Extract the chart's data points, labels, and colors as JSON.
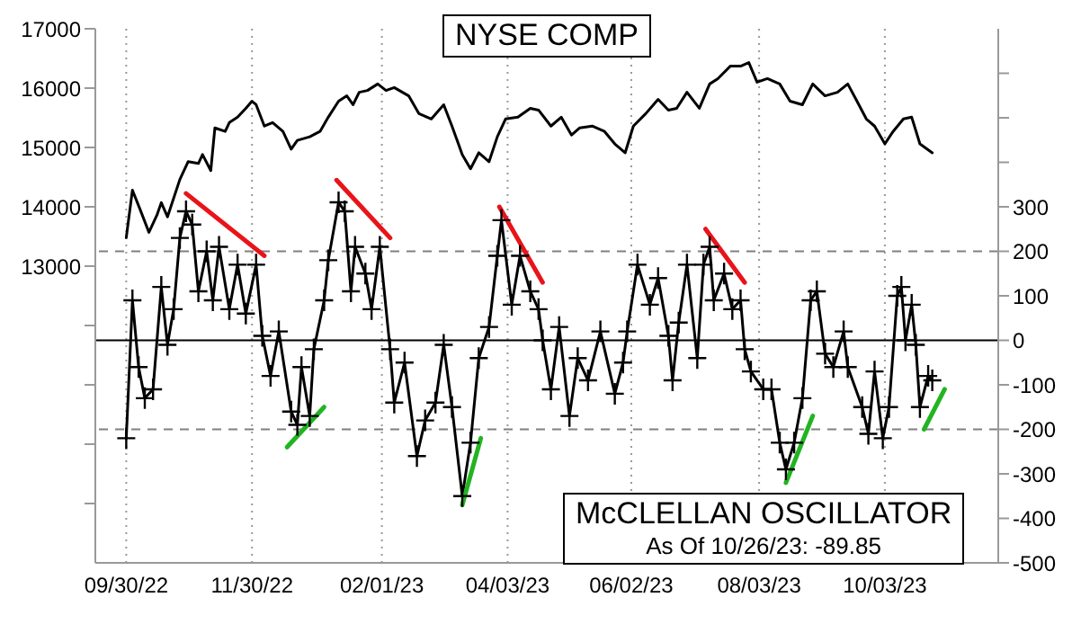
{
  "chart_data": {
    "type": "line",
    "xlim": [
      "2022-09-15",
      "2023-11-27"
    ],
    "xticks": [
      {
        "value": "2022-09-30",
        "label": "09/30/22"
      },
      {
        "value": "2022-11-30",
        "label": "11/30/22"
      },
      {
        "value": "2023-02-01",
        "label": "02/01/23"
      },
      {
        "value": "2023-04-03",
        "label": "04/03/23"
      },
      {
        "value": "2023-06-02",
        "label": "06/02/23"
      },
      {
        "value": "2023-08-03",
        "label": "08/03/23"
      },
      {
        "value": "2023-10-03",
        "label": "10/03/23"
      }
    ],
    "ylim": [
      8000,
      17000
    ],
    "yticks": [
      {
        "value": 9000,
        "label": null
      },
      {
        "value": 10000,
        "label": null
      },
      {
        "value": 11000,
        "label": null
      },
      {
        "value": 12000,
        "label": null
      },
      13000,
      14000,
      15000,
      16000,
      17000
    ],
    "y2lim": [
      -500,
      700
    ],
    "y2ticks": [
      -500,
      -400,
      -300,
      -200,
      -100,
      0,
      100,
      200,
      300,
      {
        "value": 400,
        "label": null
      },
      {
        "value": 500,
        "label": null
      },
      {
        "value": 600,
        "label": null
      }
    ],
    "grid": "x",
    "ref_lines": [
      {
        "axis": "y2",
        "value": 200,
        "color": "#808080",
        "line_style": "dashed"
      },
      {
        "axis": "y2",
        "value": -200,
        "color": "#808080",
        "line_style": "dashed"
      },
      {
        "axis": "y2",
        "value": 0,
        "color": "#000000",
        "line_style": "solid"
      }
    ],
    "annotations": [
      "As Of 10/26/23: -89.85"
    ],
    "series": [
      {
        "name": "NYSE COMP",
        "color": "#000000",
        "marker": "none",
        "x": [
          "2022-09-30",
          "2022-10-03",
          "2022-10-07",
          "2022-10-11",
          "2022-10-15",
          "2022-10-17",
          "2022-10-20",
          "2022-10-26",
          "2022-10-30",
          "2022-11-04",
          "2022-11-06",
          "2022-11-10",
          "2022-11-12",
          "2022-11-17",
          "2022-11-19",
          "2022-11-23",
          "2022-11-27",
          "2022-11-30",
          "2022-12-02",
          "2022-12-06",
          "2022-12-10",
          "2022-12-15",
          "2022-12-19",
          "2022-12-22",
          "2022-12-28",
          "2023-01-02",
          "2023-01-06",
          "2023-01-11",
          "2023-01-15",
          "2023-01-18",
          "2023-01-21",
          "2023-01-25",
          "2023-01-30",
          "2023-02-03",
          "2023-02-07",
          "2023-02-14",
          "2023-02-19",
          "2023-02-25",
          "2023-03-03",
          "2023-03-07",
          "2023-03-12",
          "2023-03-16",
          "2023-03-20",
          "2023-03-25",
          "2023-03-29",
          "2023-04-02",
          "2023-04-08",
          "2023-04-14",
          "2023-04-18",
          "2023-04-24",
          "2023-04-29",
          "2023-05-04",
          "2023-05-08",
          "2023-05-14",
          "2023-05-20",
          "2023-05-25",
          "2023-05-30",
          "2023-06-03",
          "2023-06-09",
          "2023-06-15",
          "2023-06-20",
          "2023-06-24",
          "2023-06-29",
          "2023-07-05",
          "2023-07-10",
          "2023-07-14",
          "2023-07-20",
          "2023-07-25",
          "2023-07-29",
          "2023-08-02",
          "2023-08-07",
          "2023-08-13",
          "2023-08-18",
          "2023-08-24",
          "2023-08-29",
          "2023-09-04",
          "2023-09-10",
          "2023-09-15",
          "2023-09-19",
          "2023-09-24",
          "2023-09-28",
          "2023-10-03",
          "2023-10-07",
          "2023-10-12",
          "2023-10-16",
          "2023-10-20",
          "2023-10-26"
        ],
        "values": [
          13480,
          14280,
          13930,
          13570,
          13870,
          14070,
          13830,
          14460,
          14760,
          14730,
          14880,
          14610,
          15330,
          15270,
          15420,
          15510,
          15660,
          15780,
          15720,
          15360,
          15420,
          15270,
          14970,
          15120,
          15180,
          15270,
          15510,
          15780,
          15870,
          15720,
          15930,
          15960,
          16070,
          15960,
          16010,
          15870,
          15570,
          15480,
          15720,
          15360,
          14880,
          14640,
          14910,
          14760,
          15180,
          15480,
          15510,
          15660,
          15630,
          15360,
          15510,
          15210,
          15330,
          15360,
          15270,
          15060,
          14910,
          15360,
          15570,
          15810,
          15630,
          15660,
          15930,
          15660,
          16070,
          16160,
          16370,
          16370,
          16430,
          16100,
          16160,
          16070,
          15780,
          15720,
          16070,
          15870,
          15930,
          16070,
          15810,
          15480,
          15360,
          15060,
          15270,
          15480,
          15510,
          15060,
          14910
        ]
      },
      {
        "name": "McCLELLAN OSCILLATOR",
        "color": "#000000",
        "axis": "y2",
        "marker": "cross",
        "x": [
          "2022-09-30",
          "2022-10-03",
          "2022-10-06",
          "2022-10-09",
          "2022-10-13",
          "2022-10-17",
          "2022-10-20",
          "2022-10-23",
          "2022-10-26",
          "2022-10-29",
          "2022-11-01",
          "2022-11-04",
          "2022-11-08",
          "2022-11-11",
          "2022-11-14",
          "2022-11-19",
          "2022-11-23",
          "2022-11-27",
          "2022-12-02",
          "2022-12-05",
          "2022-12-09",
          "2022-12-13",
          "2022-12-19",
          "2022-12-22",
          "2022-12-24",
          "2022-12-28",
          "2022-12-30",
          "2023-01-04",
          "2023-01-06",
          "2023-01-11",
          "2023-01-14",
          "2023-01-17",
          "2023-01-19",
          "2023-01-24",
          "2023-01-27",
          "2023-01-31",
          "2023-02-05",
          "2023-02-07",
          "2023-02-12",
          "2023-02-18",
          "2023-02-22",
          "2023-02-27",
          "2023-03-03",
          "2023-03-07",
          "2023-03-12",
          "2023-03-16",
          "2023-03-20",
          "2023-03-25",
          "2023-03-29",
          "2023-03-31",
          "2023-04-05",
          "2023-04-09",
          "2023-04-14",
          "2023-04-18",
          "2023-04-20",
          "2023-04-24",
          "2023-04-28",
          "2023-05-03",
          "2023-05-07",
          "2023-05-12",
          "2023-05-18",
          "2023-05-25",
          "2023-05-29",
          "2023-05-31",
          "2023-06-05",
          "2023-06-11",
          "2023-06-15",
          "2023-06-20",
          "2023-06-22",
          "2023-06-25",
          "2023-06-29",
          "2023-07-04",
          "2023-07-07",
          "2023-07-10",
          "2023-07-12",
          "2023-07-17",
          "2023-07-21",
          "2023-07-25",
          "2023-07-27",
          "2023-07-30",
          "2023-08-05",
          "2023-08-09",
          "2023-08-13",
          "2023-08-16",
          "2023-08-20",
          "2023-08-24",
          "2023-08-28",
          "2023-08-31",
          "2023-09-04",
          "2023-09-08",
          "2023-09-13",
          "2023-09-15",
          "2023-09-22",
          "2023-09-25",
          "2023-09-28",
          "2023-10-02",
          "2023-10-05",
          "2023-10-09",
          "2023-10-11",
          "2023-10-13",
          "2023-10-16",
          "2023-10-18",
          "2023-10-20",
          "2023-10-24",
          "2023-10-26"
        ],
        "values": [
          -220,
          90,
          -60,
          -130,
          -110,
          120,
          -10,
          70,
          230,
          290,
          260,
          110,
          200,
          90,
          210,
          70,
          170,
          60,
          170,
          10,
          -80,
          20,
          -160,
          -190,
          -60,
          -170,
          -20,
          90,
          180,
          310,
          290,
          110,
          210,
          150,
          70,
          210,
          -20,
          -140,
          -50,
          -260,
          -180,
          -140,
          -10,
          -150,
          -350,
          -230,
          -40,
          30,
          190,
          270,
          80,
          190,
          110,
          70,
          0,
          -110,
          30,
          -170,
          -40,
          -90,
          20,
          -120,
          -50,
          20,
          170,
          80,
          140,
          10,
          -90,
          40,
          170,
          -40,
          170,
          210,
          90,
          150,
          70,
          90,
          -20,
          -70,
          -110,
          -110,
          -230,
          -290,
          -230,
          -130,
          90,
          110,
          -30,
          -60,
          20,
          -60,
          -150,
          -210,
          -70,
          -220,
          -150,
          100,
          120,
          0,
          80,
          -10,
          -150,
          -80,
          -90
        ]
      },
      {
        "color": "#e8141a",
        "axis": "y2",
        "marker": "none",
        "x": [
          "2022-10-29",
          "2022-12-06"
        ],
        "values": [
          330,
          190
        ]
      },
      {
        "color": "#e8141a",
        "axis": "y2",
        "marker": "none",
        "x": [
          "2023-01-10",
          "2023-02-05"
        ],
        "values": [
          360,
          230
        ]
      },
      {
        "color": "#e8141a",
        "axis": "y2",
        "marker": "none",
        "x": [
          "2023-03-30",
          "2023-04-20"
        ],
        "values": [
          300,
          130
        ]
      },
      {
        "color": "#e8141a",
        "axis": "y2",
        "marker": "none",
        "x": [
          "2023-07-08",
          "2023-07-27"
        ],
        "values": [
          250,
          130
        ]
      },
      {
        "color": "#22b422",
        "axis": "y2",
        "marker": "none",
        "x": [
          "2022-12-17",
          "2023-01-04"
        ],
        "values": [
          -240,
          -150
        ]
      },
      {
        "color": "#22b422",
        "axis": "y2",
        "marker": "none",
        "x": [
          "2023-03-12",
          "2023-03-21"
        ],
        "values": [
          -370,
          -220
        ]
      },
      {
        "color": "#22b422",
        "axis": "y2",
        "marker": "none",
        "x": [
          "2023-08-16",
          "2023-08-29"
        ],
        "values": [
          -320,
          -170
        ]
      },
      {
        "color": "#22b422",
        "axis": "y2",
        "marker": "none",
        "x": [
          "2023-10-22",
          "2023-11-01"
        ],
        "values": [
          -200,
          -110
        ]
      }
    ]
  }
}
